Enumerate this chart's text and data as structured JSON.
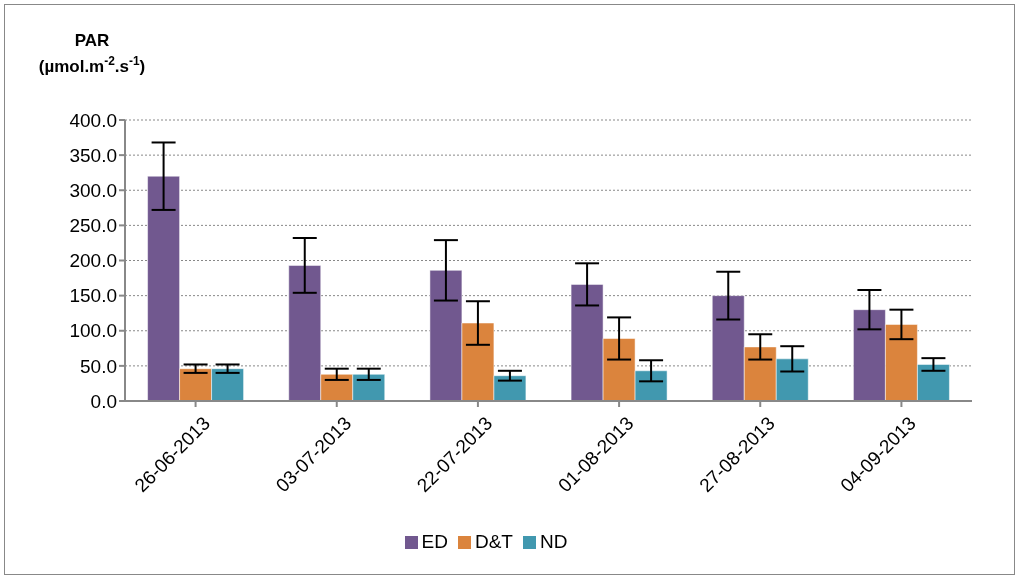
{
  "chart_data": {
    "type": "bar",
    "ylabel": "PAR\n(µmol.m$^{-2}$.s$^{-1}$)",
    "categories": [
      "26-06-2013",
      "03-07-2013",
      "22-07-2013",
      "01-08-2013",
      "27-08-2013",
      "04-09-2013"
    ],
    "series": [
      {
        "name": "ED",
        "color": "#71588f",
        "values": [
          320,
          193,
          186,
          166,
          150,
          130
        ],
        "errors": [
          48,
          39,
          43,
          30,
          34,
          28
        ]
      },
      {
        "name": "D&T",
        "color": "#db843d",
        "values": [
          46,
          38,
          111,
          89,
          77,
          109
        ],
        "errors": [
          6,
          8,
          31,
          30,
          18,
          21
        ]
      },
      {
        "name": "ND",
        "color": "#4198af",
        "values": [
          46,
          38,
          36,
          43,
          60,
          52
        ],
        "errors": [
          6,
          8,
          7,
          15,
          18,
          9
        ]
      }
    ],
    "ylim": [
      0,
      400
    ],
    "yticks": [
      {
        "value": 0,
        "label": "0.0"
      },
      {
        "value": 50,
        "label": "50.0"
      },
      {
        "value": 100,
        "label": "100.0"
      },
      {
        "value": 150,
        "label": "150.0"
      },
      {
        "value": 200,
        "label": "200.0"
      },
      {
        "value": 250,
        "label": "250.0"
      },
      {
        "value": 300,
        "label": "300.0"
      },
      {
        "value": 350,
        "label": "350.0"
      },
      {
        "value": 400,
        "label": "400.0"
      }
    ],
    "grid": "y",
    "legend": "bottom"
  }
}
